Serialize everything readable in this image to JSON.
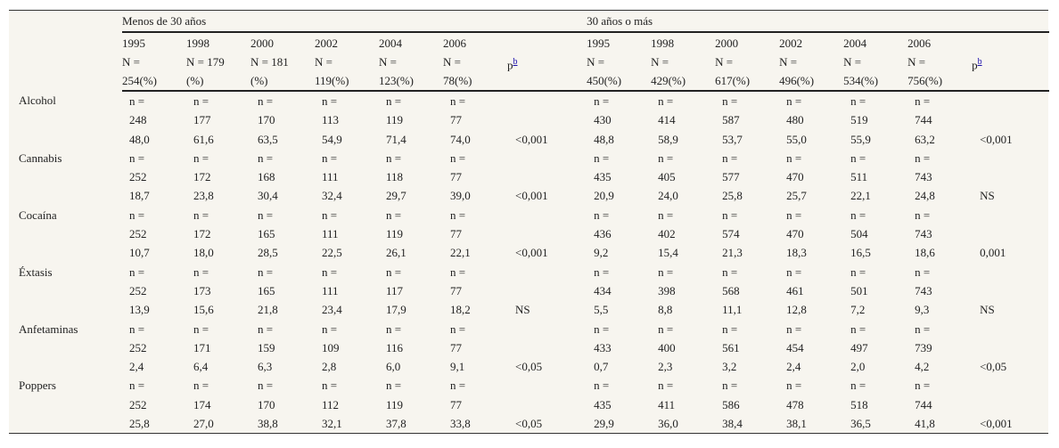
{
  "groups": [
    "Menos de 30 años",
    "30 años o más"
  ],
  "left_headers": [
    {
      "year": "1995",
      "n1": "N =",
      "n2": "254(%)"
    },
    {
      "year": "1998",
      "n1": "N = 179",
      "n2": "(%)"
    },
    {
      "year": "2000",
      "n1": "N = 181",
      "n2": "(%)"
    },
    {
      "year": "2002",
      "n1": "N =",
      "n2": "119(%)"
    },
    {
      "year": "2004",
      "n1": "N =",
      "n2": "123(%)"
    },
    {
      "year": "2006",
      "n1": "N =",
      "n2": "78(%)"
    }
  ],
  "right_headers": [
    {
      "year": "1995",
      "n1": "N =",
      "n2": "450(%)"
    },
    {
      "year": "1998",
      "n1": "N =",
      "n2": "429(%)"
    },
    {
      "year": "2000",
      "n1": "N =",
      "n2": "617(%)"
    },
    {
      "year": "2002",
      "n1": "N =",
      "n2": "496(%)"
    },
    {
      "year": "2004",
      "n1": "N =",
      "n2": "534(%)"
    },
    {
      "year": "2006",
      "n1": "N =",
      "n2": "756(%)"
    }
  ],
  "p_label": "p",
  "p_footnote": "b",
  "n_prefix": "n =",
  "rows": [
    {
      "drug": "Alcohol",
      "left_n": [
        "248",
        "177",
        "170",
        "113",
        "119",
        "77"
      ],
      "left_pct": [
        "48,0",
        "61,6",
        "63,5",
        "54,9",
        "71,4",
        "74,0"
      ],
      "left_p": "<0,001",
      "right_n": [
        "430",
        "414",
        "587",
        "480",
        "519",
        "744"
      ],
      "right_pct": [
        "48,8",
        "58,9",
        "53,7",
        "55,0",
        "55,9",
        "63,2"
      ],
      "right_p": "<0,001"
    },
    {
      "drug": "Cannabis",
      "left_n": [
        "252",
        "172",
        "168",
        "111",
        "118",
        "77"
      ],
      "left_pct": [
        "18,7",
        "23,8",
        "30,4",
        "32,4",
        "29,7",
        "39,0"
      ],
      "left_p": "<0,001",
      "right_n": [
        "435",
        "405",
        "577",
        "470",
        "511",
        "743"
      ],
      "right_pct": [
        "20,9",
        "24,0",
        "25,8",
        "25,7",
        "22,1",
        "24,8"
      ],
      "right_p": "NS"
    },
    {
      "drug": "Cocaína",
      "left_n": [
        "252",
        "172",
        "165",
        "111",
        "119",
        "77"
      ],
      "left_pct": [
        "10,7",
        "18,0",
        "28,5",
        "22,5",
        "26,1",
        "22,1"
      ],
      "left_p": "<0,001",
      "right_n": [
        "436",
        "402",
        "574",
        "470",
        "504",
        "743"
      ],
      "right_pct": [
        "9,2",
        "15,4",
        "21,3",
        "18,3",
        "16,5",
        "18,6"
      ],
      "right_p": "0,001"
    },
    {
      "drug": "Éxtasis",
      "left_n": [
        "252",
        "173",
        "165",
        "111",
        "117",
        "77"
      ],
      "left_pct": [
        "13,9",
        "15,6",
        "21,8",
        "23,4",
        "17,9",
        "18,2"
      ],
      "left_p": "NS",
      "right_n": [
        "434",
        "398",
        "568",
        "461",
        "501",
        "743"
      ],
      "right_pct": [
        "5,5",
        "8,8",
        "11,1",
        "12,8",
        "7,2",
        "9,3"
      ],
      "right_p": "NS"
    },
    {
      "drug": "Anfetaminas",
      "left_n": [
        "252",
        "171",
        "159",
        "109",
        "116",
        "77"
      ],
      "left_pct": [
        "2,4",
        "6,4",
        "6,3",
        "2,8",
        "6,0",
        "9,1"
      ],
      "left_p": "<0,05",
      "right_n": [
        "433",
        "400",
        "561",
        "454",
        "497",
        "739"
      ],
      "right_pct": [
        "0,7",
        "2,3",
        "3,2",
        "2,4",
        "2,0",
        "4,2"
      ],
      "right_p": "<0,05"
    },
    {
      "drug": "Poppers",
      "left_n": [
        "252",
        "174",
        "170",
        "112",
        "119",
        "77"
      ],
      "left_pct": [
        "25,8",
        "27,0",
        "38,8",
        "32,1",
        "37,8",
        "33,8"
      ],
      "left_p": "<0,05",
      "right_n": [
        "435",
        "411",
        "586",
        "478",
        "518",
        "744"
      ],
      "right_pct": [
        "29,9",
        "36,0",
        "38,4",
        "38,1",
        "36,5",
        "41,8"
      ],
      "right_p": "<0,001"
    }
  ]
}
